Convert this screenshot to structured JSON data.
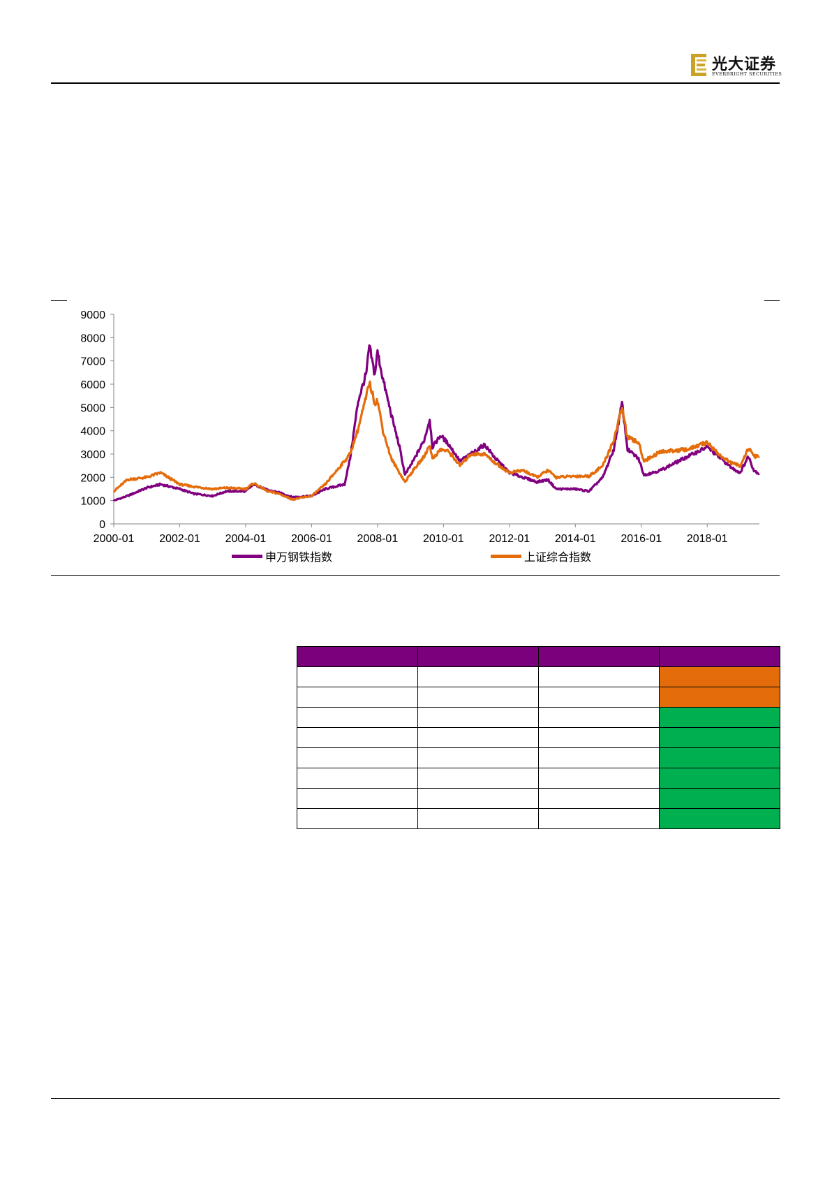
{
  "header": {
    "brand_cn": "光大证券",
    "brand_en": "EVERBRIGHT SECURITIES"
  },
  "colors": {
    "purple": "#800080",
    "orange": "#e46c0a",
    "green": "#00b050",
    "header_fill": "#7b007b"
  },
  "chart_data": {
    "type": "line",
    "title": "",
    "xlabel": "",
    "ylabel": "",
    "ylim": [
      0,
      9000
    ],
    "yticks": [
      0,
      1000,
      2000,
      3000,
      4000,
      5000,
      6000,
      7000,
      8000,
      9000
    ],
    "xtick_labels": [
      "2000-01",
      "2002-01",
      "2004-01",
      "2006-01",
      "2008-01",
      "2010-01",
      "2012-01",
      "2014-01",
      "2016-01",
      "2018-01"
    ],
    "xrange": [
      "2000-01",
      "2019-08"
    ],
    "legend_position": "bottom",
    "grid": false,
    "series": [
      {
        "name": "申万钢铁指数",
        "color": "#800080",
        "points": [
          [
            "2000-01",
            1000
          ],
          [
            "2000-06",
            1200
          ],
          [
            "2001-01",
            1550
          ],
          [
            "2001-06",
            1700
          ],
          [
            "2002-01",
            1500
          ],
          [
            "2002-06",
            1300
          ],
          [
            "2003-01",
            1200
          ],
          [
            "2003-06",
            1400
          ],
          [
            "2004-01",
            1400
          ],
          [
            "2004-04",
            1700
          ],
          [
            "2004-09",
            1450
          ],
          [
            "2005-01",
            1350
          ],
          [
            "2005-06",
            1150
          ],
          [
            "2006-01",
            1200
          ],
          [
            "2006-06",
            1500
          ],
          [
            "2007-01",
            1700
          ],
          [
            "2007-03",
            2800
          ],
          [
            "2007-06",
            5300
          ],
          [
            "2007-09",
            6500
          ],
          [
            "2007-10",
            7650
          ],
          [
            "2007-12",
            6400
          ],
          [
            "2008-01",
            7400
          ],
          [
            "2008-03",
            6200
          ],
          [
            "2008-06",
            4700
          ],
          [
            "2008-09",
            3300
          ],
          [
            "2008-11",
            2100
          ],
          [
            "2009-02",
            2700
          ],
          [
            "2009-06",
            3600
          ],
          [
            "2009-08",
            4500
          ],
          [
            "2009-09",
            3300
          ],
          [
            "2009-12",
            3800
          ],
          [
            "2010-03",
            3400
          ],
          [
            "2010-07",
            2700
          ],
          [
            "2010-11",
            3000
          ],
          [
            "2011-04",
            3400
          ],
          [
            "2011-08",
            2800
          ],
          [
            "2012-01",
            2200
          ],
          [
            "2012-06",
            2000
          ],
          [
            "2012-11",
            1800
          ],
          [
            "2013-03",
            1900
          ],
          [
            "2013-06",
            1500
          ],
          [
            "2014-01",
            1500
          ],
          [
            "2014-06",
            1400
          ],
          [
            "2014-11",
            2000
          ],
          [
            "2015-03",
            3200
          ],
          [
            "2015-06",
            5200
          ],
          [
            "2015-08",
            3200
          ],
          [
            "2015-12",
            2800
          ],
          [
            "2016-02",
            2100
          ],
          [
            "2016-08",
            2300
          ],
          [
            "2017-01",
            2600
          ],
          [
            "2017-06",
            2900
          ],
          [
            "2018-01",
            3300
          ],
          [
            "2018-06",
            2800
          ],
          [
            "2018-10",
            2400
          ],
          [
            "2019-01",
            2200
          ],
          [
            "2019-04",
            2900
          ],
          [
            "2019-06",
            2300
          ],
          [
            "2019-08",
            2150
          ]
        ]
      },
      {
        "name": "上证综合指数",
        "color": "#e46c0a",
        "points": [
          [
            "2000-01",
            1400
          ],
          [
            "2000-06",
            1900
          ],
          [
            "2001-01",
            2000
          ],
          [
            "2001-06",
            2200
          ],
          [
            "2002-01",
            1700
          ],
          [
            "2002-06",
            1600
          ],
          [
            "2003-01",
            1500
          ],
          [
            "2003-06",
            1550
          ],
          [
            "2004-01",
            1500
          ],
          [
            "2004-04",
            1750
          ],
          [
            "2004-09",
            1400
          ],
          [
            "2005-01",
            1300
          ],
          [
            "2005-06",
            1050
          ],
          [
            "2006-01",
            1200
          ],
          [
            "2006-06",
            1700
          ],
          [
            "2007-01",
            2700
          ],
          [
            "2007-03",
            3000
          ],
          [
            "2007-06",
            4100
          ],
          [
            "2007-09",
            5500
          ],
          [
            "2007-10",
            6100
          ],
          [
            "2007-12",
            5200
          ],
          [
            "2008-01",
            5300
          ],
          [
            "2008-03",
            4000
          ],
          [
            "2008-06",
            2800
          ],
          [
            "2008-09",
            2200
          ],
          [
            "2008-11",
            1800
          ],
          [
            "2009-02",
            2300
          ],
          [
            "2009-06",
            2900
          ],
          [
            "2009-08",
            3400
          ],
          [
            "2009-09",
            2800
          ],
          [
            "2009-12",
            3200
          ],
          [
            "2010-03",
            3100
          ],
          [
            "2010-07",
            2500
          ],
          [
            "2010-11",
            3000
          ],
          [
            "2011-04",
            3000
          ],
          [
            "2011-08",
            2600
          ],
          [
            "2012-01",
            2200
          ],
          [
            "2012-06",
            2300
          ],
          [
            "2012-11",
            2000
          ],
          [
            "2013-03",
            2300
          ],
          [
            "2013-06",
            2000
          ],
          [
            "2014-01",
            2050
          ],
          [
            "2014-06",
            2050
          ],
          [
            "2014-11",
            2500
          ],
          [
            "2015-03",
            3600
          ],
          [
            "2015-06",
            5000
          ],
          [
            "2015-08",
            3700
          ],
          [
            "2015-12",
            3500
          ],
          [
            "2016-02",
            2700
          ],
          [
            "2016-08",
            3100
          ],
          [
            "2017-01",
            3150
          ],
          [
            "2017-06",
            3200
          ],
          [
            "2018-01",
            3500
          ],
          [
            "2018-06",
            2900
          ],
          [
            "2018-10",
            2600
          ],
          [
            "2019-01",
            2500
          ],
          [
            "2019-04",
            3250
          ],
          [
            "2019-06",
            2900
          ],
          [
            "2019-08",
            2900
          ]
        ]
      }
    ]
  },
  "table": {
    "rows": 8,
    "last_column_colors": [
      "#e46c0a",
      "#e46c0a",
      "#00b050",
      "#00b050",
      "#00b050",
      "#00b050",
      "#00b050",
      "#00b050"
    ]
  }
}
